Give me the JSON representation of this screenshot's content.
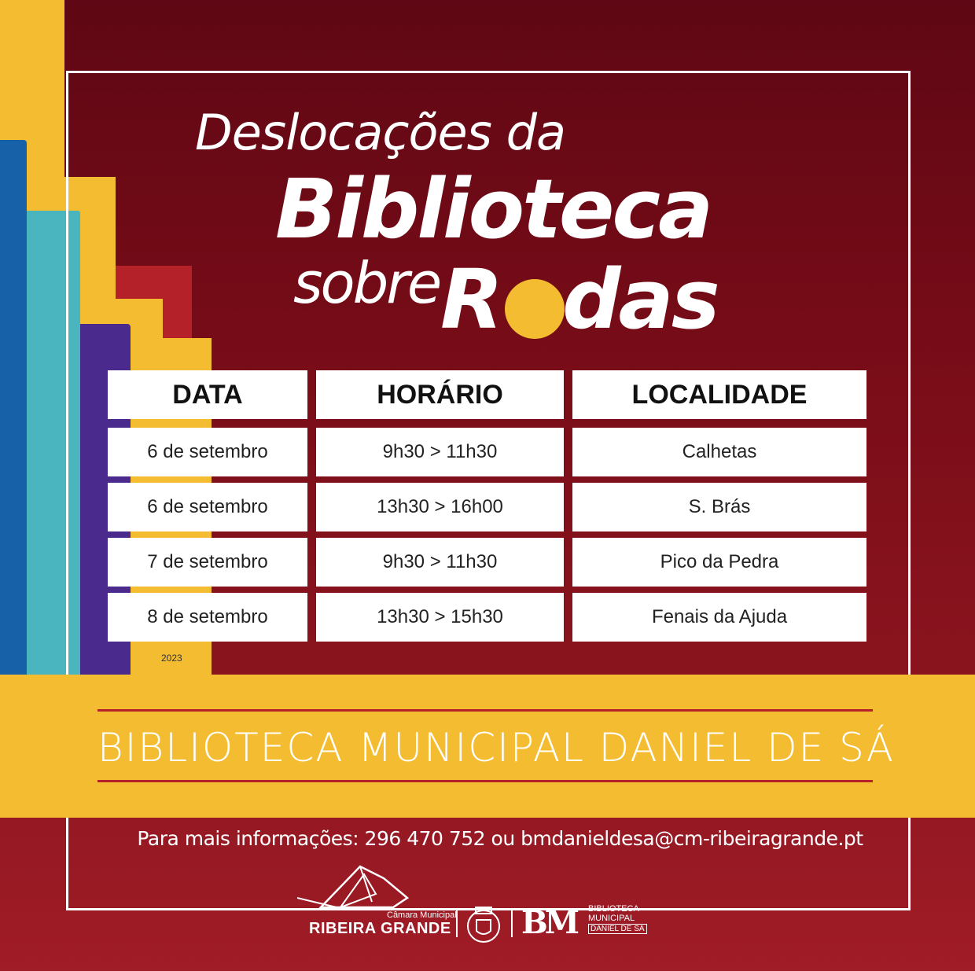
{
  "title": {
    "line1": "Deslocações da",
    "line2": "Biblioteca",
    "line3_part1": "sobre",
    "line3_part2a": "R",
    "line3_part2b": "das"
  },
  "table": {
    "headers": [
      "DATA",
      "HORÁRIO",
      "LOCALIDADE"
    ],
    "rows": [
      {
        "data": "6 de setembro",
        "horario": "9h30 > 11h30",
        "localidade": "Calhetas"
      },
      {
        "data": "6 de setembro",
        "horario": "13h30 > 16h00",
        "localidade": "S. Brás"
      },
      {
        "data": "7 de setembro",
        "horario": "9h30 > 11h30",
        "localidade": "Pico da Pedra"
      },
      {
        "data": "8 de setembro",
        "horario": "13h30 > 15h30",
        "localidade": "Fenais da Ajuda"
      }
    ]
  },
  "year": "2023",
  "band": {
    "text": "BIBLIOTECA MUNICIPAL DANIEL DE SÁ"
  },
  "contact": "Para mais informações: 296 470 752 ou bmdanieldesa@cm-ribeiragrande.pt",
  "logos": {
    "rg_small": "Câmara Municipal",
    "rg_big": "RIBEIRA GRANDE",
    "bm_mark": "BM",
    "bm_line1": "BIBLIOTECA",
    "bm_line2": "MUNICIPAL",
    "bm_line3": "DANIEL DE SÁ"
  },
  "colors": {
    "background": "#7a0d18",
    "accent_yellow": "#f4bd31",
    "accent_red": "#b52128"
  }
}
